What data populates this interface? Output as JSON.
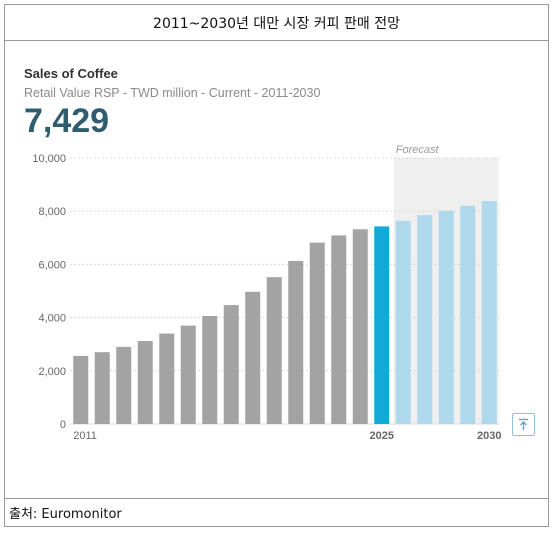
{
  "header": {
    "title": "2011~2030년 대만 시장 커피 판매 전망"
  },
  "footer": {
    "source": "출처: Euromonitor"
  },
  "chart_data": {
    "type": "bar",
    "title": "Sales of Coffee",
    "subtitle": "Retail Value RSP - TWD million - Current - 2011-2030",
    "highlight_value": "7,429",
    "categories": [
      "2011",
      "2012",
      "2013",
      "2014",
      "2015",
      "2016",
      "2017",
      "2018",
      "2019",
      "2020",
      "2021",
      "2022",
      "2023",
      "2024",
      "2025",
      "2026",
      "2027",
      "2028",
      "2029",
      "2030"
    ],
    "values": [
      2560,
      2700,
      2900,
      3120,
      3400,
      3700,
      4060,
      4470,
      4970,
      5520,
      6130,
      6820,
      7090,
      7320,
      7429,
      7640,
      7850,
      8020,
      8200,
      8380
    ],
    "series_kind": [
      "actual",
      "actual",
      "actual",
      "actual",
      "actual",
      "actual",
      "actual",
      "actual",
      "actual",
      "actual",
      "actual",
      "actual",
      "actual",
      "actual",
      "current",
      "forecast",
      "forecast",
      "forecast",
      "forecast",
      "forecast"
    ],
    "x_tick_labels": [
      {
        "category": "2011",
        "text": "2011"
      },
      {
        "category": "2025",
        "text": "2025"
      },
      {
        "category": "2030",
        "text": "2030"
      }
    ],
    "y_ticks": [
      "0",
      "2,000",
      "4,000",
      "6,000",
      "8,000",
      "10,000"
    ],
    "ylim": [
      0,
      10000
    ],
    "forecast_label": "Forecast",
    "grid": true,
    "colors": {
      "actual": "#a3a3a3",
      "current": "#13a9d6",
      "forecast": "#aed8ec",
      "forecast_band": "#efefef",
      "grid": "#d9d9d9",
      "axis_text": "#666666"
    }
  }
}
